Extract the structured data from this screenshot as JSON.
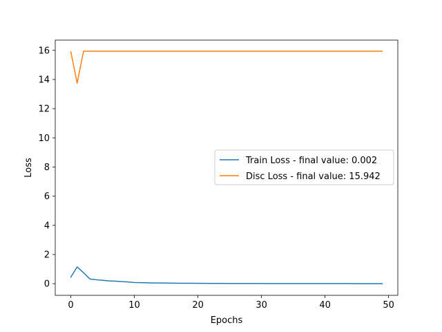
{
  "chart_data": {
    "type": "line",
    "title": "",
    "xlabel": "Epochs",
    "ylabel": "Loss",
    "xlim": [
      -2.45,
      51.45
    ],
    "ylim": [
      -0.8,
      16.7
    ],
    "xticks": [
      0,
      10,
      20,
      30,
      40,
      50
    ],
    "yticks": [
      0,
      2,
      4,
      6,
      8,
      10,
      12,
      14,
      16
    ],
    "grid": false,
    "legend_position": "center-right",
    "series": [
      {
        "name": "Train Loss - final value: 0.002",
        "color": "#1f77b4",
        "x": [
          0,
          1,
          2,
          3,
          4,
          5,
          6,
          7,
          8,
          9,
          10,
          11,
          12,
          13,
          14,
          15,
          16,
          17,
          18,
          19,
          20,
          21,
          22,
          23,
          24,
          25,
          26,
          27,
          28,
          29,
          30,
          31,
          32,
          33,
          34,
          35,
          36,
          37,
          38,
          39,
          40,
          41,
          42,
          43,
          44,
          45,
          46,
          47,
          48,
          49
        ],
        "values": [
          0.45,
          1.15,
          0.75,
          0.32,
          0.27,
          0.23,
          0.19,
          0.17,
          0.14,
          0.12,
          0.08,
          0.07,
          0.06,
          0.05,
          0.045,
          0.04,
          0.035,
          0.032,
          0.03,
          0.028,
          0.025,
          0.022,
          0.02,
          0.018,
          0.016,
          0.015,
          0.014,
          0.013,
          0.012,
          0.011,
          0.01,
          0.009,
          0.0085,
          0.008,
          0.0075,
          0.007,
          0.0065,
          0.006,
          0.0055,
          0.005,
          0.0048,
          0.0045,
          0.0042,
          0.004,
          0.0035,
          0.003,
          0.0028,
          0.0025,
          0.0022,
          0.002
        ]
      },
      {
        "name": "Disc Loss - final value: 15.942",
        "color": "#ff7f0e",
        "x": [
          0,
          1,
          2,
          3,
          4,
          5,
          6,
          7,
          8,
          9,
          10,
          11,
          12,
          13,
          14,
          15,
          16,
          17,
          18,
          19,
          20,
          21,
          22,
          23,
          24,
          25,
          26,
          27,
          28,
          29,
          30,
          31,
          32,
          33,
          34,
          35,
          36,
          37,
          38,
          39,
          40,
          41,
          42,
          43,
          44,
          45,
          46,
          47,
          48,
          49
        ],
        "values": [
          15.9,
          13.75,
          15.942,
          15.942,
          15.942,
          15.942,
          15.942,
          15.942,
          15.942,
          15.942,
          15.942,
          15.942,
          15.942,
          15.942,
          15.942,
          15.942,
          15.942,
          15.942,
          15.942,
          15.942,
          15.942,
          15.942,
          15.942,
          15.942,
          15.942,
          15.942,
          15.942,
          15.942,
          15.942,
          15.942,
          15.942,
          15.942,
          15.942,
          15.942,
          15.942,
          15.942,
          15.942,
          15.942,
          15.942,
          15.942,
          15.942,
          15.942,
          15.942,
          15.942,
          15.942,
          15.942,
          15.942,
          15.942,
          15.942,
          15.942
        ]
      }
    ]
  }
}
